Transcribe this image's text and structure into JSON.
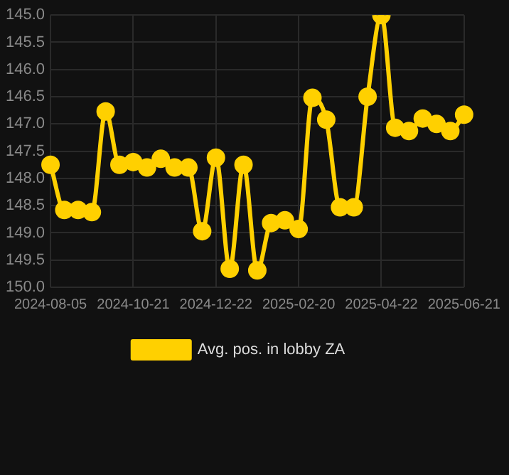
{
  "chart_data": {
    "type": "line",
    "categories": [
      "2024-08-05",
      null,
      null,
      null,
      null,
      null,
      "2024-10-21",
      null,
      null,
      null,
      null,
      null,
      "2024-12-22",
      null,
      null,
      null,
      null,
      null,
      "2025-02-20",
      null,
      null,
      null,
      null,
      null,
      "2025-04-22",
      null,
      null,
      null,
      null,
      null,
      "2025-06-21"
    ],
    "series": [
      {
        "name": "Avg. pos. in lobby ZA",
        "color": "#ffd000",
        "values": [
          147.75,
          148.58,
          148.58,
          148.62,
          146.77,
          147.75,
          147.7,
          147.8,
          147.64,
          147.8,
          147.8,
          148.97,
          147.62,
          149.66,
          147.75,
          149.69,
          148.82,
          148.77,
          148.93,
          146.52,
          146.92,
          148.53,
          148.53,
          146.5,
          145.0,
          147.07,
          147.13,
          146.9,
          147.0,
          147.13,
          146.83
        ]
      }
    ],
    "ylim": [
      150,
      145
    ],
    "yticks": [
      {
        "value": 150,
        "label": "150.0"
      },
      149.5,
      {
        "value": 149,
        "label": "149.0"
      },
      148.5,
      {
        "value": 148,
        "label": "148.0"
      },
      147.5,
      {
        "value": 147,
        "label": "147.0"
      },
      146.5,
      {
        "value": 146,
        "label": "146.0"
      },
      145.5,
      {
        "value": 145,
        "label": "145.0"
      }
    ],
    "grid": true,
    "legend": "bottom",
    "marker": "circle",
    "line_style": "solid"
  }
}
